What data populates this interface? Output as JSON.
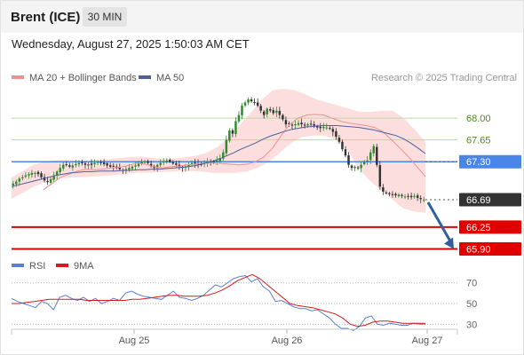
{
  "header": {
    "instrument": "Brent (ICE)",
    "timeframe": "30 MIN",
    "datetime": "Wednesday, August 27, 2025 1:50:03 AM CET"
  },
  "colors": {
    "bollinger_fill": "#fcdede",
    "ma20": "#f19090",
    "ma50": "#4e5f9c",
    "candle_up": "#2e8b2e",
    "candle_down": "#333333",
    "pivot_green": "#bcd9a6",
    "pivot_blue": "#4a86e8",
    "support_red": "#e00000",
    "current_price": "#333333",
    "arrow": "#2f5f9e",
    "rsi_line": "#5b7fd6",
    "rsi_ma_line": "#d61a1a"
  },
  "chart_data": [
    {
      "type": "candlestick",
      "legend": [
        "MA 20 + Bollinger Bands",
        "MA 50"
      ],
      "legend_placement": "top-left",
      "copyright": "Research © 2025 Trading Central",
      "x_ticks": [
        "Aug 25",
        "Aug 26",
        "Aug 27"
      ],
      "y_range": [
        65.75,
        68.4
      ],
      "levels": [
        {
          "value": 68.0,
          "label": "68.00",
          "style": "green"
        },
        {
          "value": 67.65,
          "label": "67.65",
          "style": "green"
        },
        {
          "value": 67.3,
          "label": "67.30",
          "style": "blue"
        },
        {
          "value": 66.69,
          "label": "66.69",
          "style": "current"
        },
        {
          "value": 66.25,
          "label": "66.25",
          "style": "red"
        },
        {
          "value": 65.9,
          "label": "65.90",
          "style": "red"
        }
      ],
      "close_path": [
        66.95,
        66.98,
        67.03,
        67.05,
        67.08,
        67.1,
        67.12,
        67.12,
        67.1,
        67.05,
        67.0,
        66.97,
        67.02,
        67.08,
        67.14,
        67.2,
        67.25,
        67.25,
        67.22,
        67.24,
        67.26,
        67.28,
        67.28,
        67.25,
        67.26,
        67.25,
        67.28,
        67.3,
        67.28,
        67.26,
        67.24,
        67.22,
        67.22,
        67.2,
        67.18,
        67.16,
        67.18,
        67.2,
        67.22,
        67.24,
        67.27,
        67.3,
        67.3,
        67.28,
        67.23,
        67.2,
        67.25,
        67.28,
        67.3,
        67.32,
        67.3,
        67.27,
        67.25,
        67.22,
        67.2,
        67.22,
        67.25,
        67.28,
        67.27,
        67.25,
        67.25,
        67.28,
        67.3,
        67.3,
        67.3,
        67.32,
        67.36,
        67.45,
        67.65,
        67.8,
        67.75,
        67.95,
        68.05,
        68.2,
        68.25,
        68.3,
        68.27,
        68.25,
        68.2,
        68.12,
        68.05,
        68.15,
        68.12,
        68.08,
        68.12,
        68.05,
        67.98,
        67.9,
        67.9,
        67.88,
        67.9,
        67.92,
        67.9,
        67.88,
        67.9,
        67.9,
        67.88,
        67.85,
        67.84,
        67.86,
        67.85,
        67.83,
        67.78,
        67.7,
        67.62,
        67.5,
        67.4,
        67.25,
        67.2,
        67.22,
        67.2,
        67.25,
        67.3,
        67.32,
        67.45,
        67.55,
        67.25,
        66.9,
        66.82,
        66.8,
        66.78,
        66.77,
        66.76,
        66.77,
        66.75,
        66.74,
        66.74,
        66.73,
        66.75,
        66.72,
        66.7,
        66.69
      ],
      "ma50_path": [
        66.9,
        66.93,
        66.96,
        66.99,
        67.02,
        67.05,
        67.08,
        67.1,
        67.12,
        67.13,
        67.14,
        67.14,
        67.15,
        67.15,
        67.15,
        67.16,
        67.16,
        67.17,
        67.17,
        67.18,
        67.18,
        67.19,
        67.2,
        67.21,
        67.22,
        67.24,
        67.27,
        67.3,
        67.34,
        67.39,
        67.44,
        67.5,
        67.55,
        67.6,
        67.66,
        67.71,
        67.75,
        67.79,
        67.82,
        67.84,
        67.86,
        67.87,
        67.88,
        67.88,
        67.88,
        67.87,
        67.86,
        67.85,
        67.83,
        67.81,
        67.78,
        67.75,
        67.72,
        67.67,
        67.6,
        67.52,
        67.43
      ],
      "ma20_path": [
        66.85,
        66.95,
        67.05,
        67.1,
        67.15,
        67.18,
        67.17,
        67.18,
        67.2,
        67.21,
        67.24,
        67.28,
        67.26,
        67.22,
        67.2,
        67.22,
        67.23,
        67.25,
        67.26,
        67.28,
        67.28,
        67.27,
        67.26,
        67.25,
        67.26,
        67.3,
        67.38,
        67.52,
        67.72,
        67.9,
        68.0,
        68.05,
        68.06,
        68.05,
        68.0,
        67.95,
        67.92,
        67.9,
        67.88,
        67.85,
        67.78,
        67.65,
        67.52,
        67.38,
        67.22,
        67.06
      ],
      "bb_upper_path": [
        67.05,
        67.15,
        67.25,
        67.3,
        67.32,
        67.33,
        67.32,
        67.32,
        67.33,
        67.34,
        67.36,
        67.38,
        67.38,
        67.36,
        67.34,
        67.35,
        67.37,
        67.4,
        67.45,
        67.55,
        67.7,
        67.9,
        68.1,
        68.3,
        68.45,
        68.47,
        68.45,
        68.38,
        68.3,
        68.25,
        68.2,
        68.15,
        68.1,
        68.1,
        68.12,
        68.12,
        68.0,
        67.82,
        67.62
      ],
      "bb_lower_path": [
        66.7,
        66.8,
        66.9,
        66.98,
        67.02,
        67.04,
        67.05,
        67.06,
        67.07,
        67.08,
        67.1,
        67.12,
        67.12,
        67.13,
        67.14,
        67.15,
        67.15,
        67.14,
        67.12,
        67.12,
        67.12,
        67.14,
        67.2,
        67.3,
        67.45,
        67.6,
        67.7,
        67.72,
        67.72,
        67.65,
        67.5,
        67.2,
        67.0,
        66.85,
        66.7,
        66.55,
        66.5,
        66.48
      ]
    },
    {
      "type": "line",
      "legend": [
        "RSI",
        "9MA"
      ],
      "y_ticks": [
        70,
        50,
        30
      ],
      "y_range": [
        20,
        80
      ],
      "rsi_path": [
        55,
        52,
        50,
        48,
        46,
        52,
        50,
        44,
        56,
        58,
        55,
        53,
        56,
        52,
        55,
        50,
        52,
        55,
        53,
        60,
        62,
        59,
        57,
        56,
        55,
        54,
        58,
        62,
        56,
        55,
        53,
        55,
        58,
        63,
        68,
        66,
        70,
        74,
        76,
        77,
        71,
        74,
        66,
        62,
        52,
        53,
        50,
        47,
        45,
        45,
        43,
        44,
        40,
        36,
        30,
        26,
        26,
        24,
        28,
        36,
        38,
        30,
        29,
        31,
        30,
        29,
        29,
        31,
        30,
        30
      ],
      "rsi_ma_path": [
        50,
        50,
        51,
        52,
        53,
        54,
        54,
        54,
        54,
        54,
        53,
        53,
        53,
        53,
        53,
        53,
        54,
        54,
        55,
        56,
        57,
        58,
        58,
        57,
        57,
        57,
        58,
        60,
        63,
        67,
        72,
        75,
        78,
        74,
        68,
        62,
        56,
        50,
        48,
        47,
        46,
        44,
        42,
        40,
        36,
        30,
        28,
        29,
        32,
        33,
        33,
        32,
        31,
        31,
        31,
        31
      ]
    }
  ]
}
